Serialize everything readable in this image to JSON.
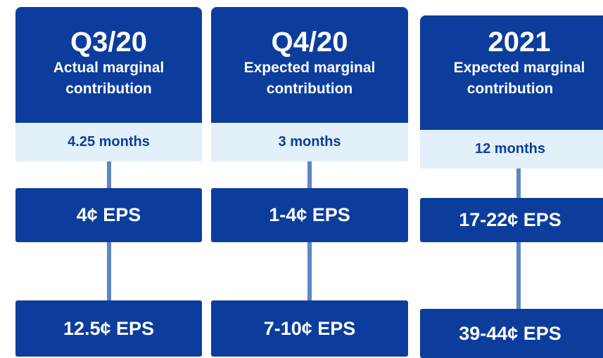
{
  "columns": [
    {
      "period": "Q3/20",
      "subtitle": [
        "Actual marginal",
        "contribution"
      ],
      "duration": "4.25 months",
      "eps_1": "4¢ EPS",
      "eps_2": "12.5¢ EPS"
    },
    {
      "period": "Q4/20",
      "subtitle": [
        "Expected marginal",
        "contribution"
      ],
      "duration": "3 months",
      "eps_1": "1-4¢ EPS",
      "eps_2": "7-10¢ EPS"
    },
    {
      "period": "2021",
      "subtitle": [
        "Expected marginal",
        "contribution"
      ],
      "duration": "12 months",
      "eps_1": "17-22¢ EPS",
      "eps_2": "39-44¢ EPS"
    }
  ]
}
